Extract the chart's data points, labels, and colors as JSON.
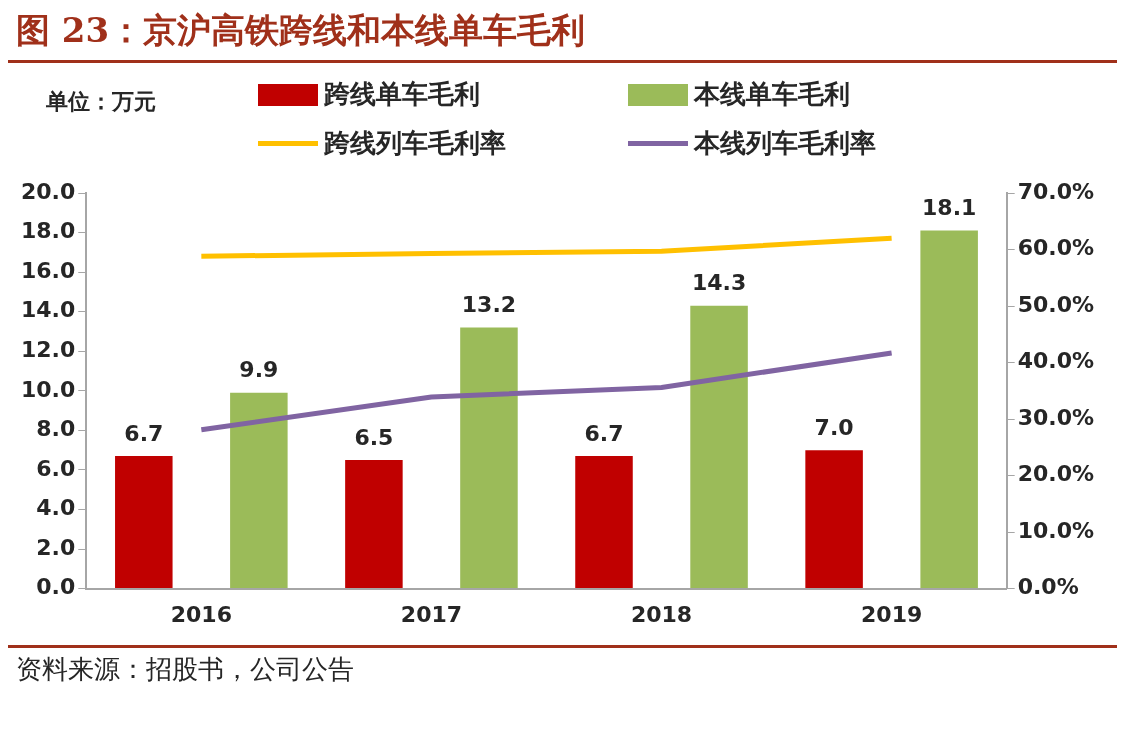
{
  "chart_data": {
    "type": "bar",
    "title": "图 23：京沪高铁跨线和本线单车毛利",
    "ylabel": "单位：万元",
    "annotations": [
      "资料来源：招股书，公司公告"
    ],
    "categories": [
      "2016",
      "2017",
      "2018",
      "2019"
    ],
    "series": [
      {
        "name": "跨线单车毛利",
        "color": "#c00000",
        "values": [
          6.7,
          6.5,
          6.7,
          7.0
        ],
        "value_labels": [
          "6.7",
          "6.5",
          "6.7",
          "7.0"
        ]
      },
      {
        "name": "本线单车毛利",
        "color": "#9bbb59",
        "values": [
          9.9,
          13.2,
          14.3,
          18.1
        ],
        "value_labels": [
          "9.9",
          "13.2",
          "14.3",
          "18.1"
        ]
      },
      {
        "name": "跨线列车毛利率",
        "type": "line",
        "axis": "y2",
        "color": "#ffc000",
        "values": [
          58.8,
          59.3,
          59.7,
          62.0
        ]
      },
      {
        "name": "本线列车毛利率",
        "type": "line",
        "axis": "y2",
        "color": "#8064a2",
        "values": [
          28.1,
          33.9,
          35.6,
          41.7
        ]
      }
    ],
    "ylim": [
      0,
      20
    ],
    "yticks": [
      {
        "value": 0,
        "label": "0.0"
      },
      {
        "value": 2,
        "label": "2.0"
      },
      {
        "value": 4,
        "label": "4.0"
      },
      {
        "value": 6,
        "label": "6.0"
      },
      {
        "value": 8,
        "label": "8.0"
      },
      {
        "value": 10,
        "label": "10.0"
      },
      {
        "value": 12,
        "label": "12.0"
      },
      {
        "value": 14,
        "label": "14.0"
      },
      {
        "value": 16,
        "label": "16.0"
      },
      {
        "value": 18,
        "label": "18.0"
      },
      {
        "value": 20,
        "label": "20.0"
      }
    ],
    "y2lim": [
      0,
      70
    ],
    "y2ticks": [
      {
        "value": 0,
        "label": "0.0%"
      },
      {
        "value": 10,
        "label": "10.0%"
      },
      {
        "value": 20,
        "label": "20.0%"
      },
      {
        "value": 30,
        "label": "30.0%"
      },
      {
        "value": 40,
        "label": "40.0%"
      },
      {
        "value": 50,
        "label": "50.0%"
      },
      {
        "value": 60,
        "label": "60.0%"
      },
      {
        "value": 70,
        "label": "70.0%"
      }
    ],
    "grid": false,
    "legend": "top",
    "marker": "none",
    "line_style": "solid"
  }
}
